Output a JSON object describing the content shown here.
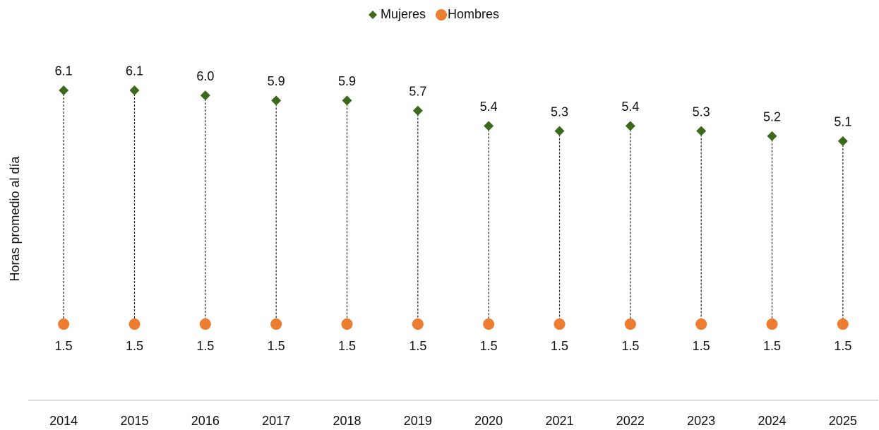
{
  "chart_data": {
    "type": "dumbbell",
    "y_label": "Horas promedio al día",
    "categories": [
      "2014",
      "2015",
      "2016",
      "2017",
      "2018",
      "2019",
      "2020",
      "2021",
      "2022",
      "2023",
      "2024",
      "2025"
    ],
    "series": [
      {
        "name": "Mujeres",
        "color": "#3b6a1c",
        "marker": "diamond",
        "values": [
          6.1,
          6.1,
          6.0,
          5.9,
          5.9,
          5.7,
          5.4,
          5.3,
          5.4,
          5.3,
          5.2,
          5.1
        ],
        "value_labels": [
          "6.1",
          "6.1",
          "6.0",
          "5.9",
          "5.9",
          "5.7",
          "5.4",
          "5.3",
          "5.4",
          "5.3",
          "5.2",
          "5.1"
        ]
      },
      {
        "name": "Hombres",
        "color": "#ed7d31",
        "marker": "circle",
        "values": [
          1.5,
          1.5,
          1.5,
          1.5,
          1.5,
          1.5,
          1.5,
          1.5,
          1.5,
          1.5,
          1.5,
          1.5
        ]
      }
    ],
    "ylim": [
      0,
      7.6
    ],
    "legend": "top"
  }
}
